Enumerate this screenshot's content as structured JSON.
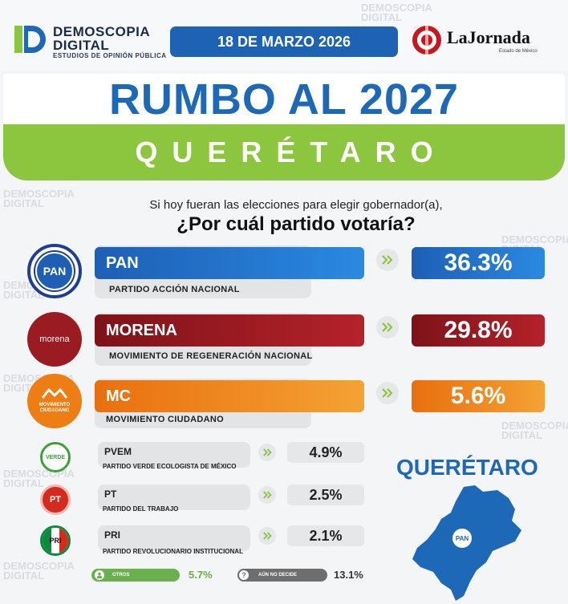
{
  "header": {
    "brand_line1": "DEMOSCOPIA",
    "brand_line2": "DIGITAL",
    "brand_tagline": "ESTUDIOS DE OPINIÓN PÚBLICA",
    "date": "18 DE MARZO 2026",
    "partner_name": "LaJornada",
    "partner_sub": "Estado de México"
  },
  "title": "RUMBO AL 2027",
  "state_banner": "QUERÉTARO",
  "question_line1": "Si hoy fueran las elecciones para elegir gobernador(a),",
  "question_line2": "¿Por cuál partido votaría?",
  "watermark_line1": "DEMOSCOPIA",
  "watermark_line2": "DIGITAL",
  "map_title": "QUERÉTARO",
  "map_badge": "PAN",
  "colors": {
    "pan": "#1d5fb5",
    "morena": "#9a1b22",
    "mc": "#ee7d14",
    "pvem": "#3aa23a",
    "pt": "#d52b1e",
    "pri": "#0b8a3e",
    "otros": "#6ab04c",
    "no_decide": "#6e6e6e",
    "accent_green": "#8cc63f",
    "accent_blue": "#1e68b8"
  },
  "logos": {
    "pan": "PAN",
    "morena": "morena",
    "mc": "MOVIMIENTO CIUDADANO",
    "pvem": "VERDE",
    "pt": "PT",
    "pri": "PRI"
  },
  "chart_data": {
    "type": "bar",
    "title": "¿Por cuál partido votaría?",
    "categories": [
      "PAN",
      "MORENA",
      "MC",
      "PVEM",
      "PT",
      "PRI",
      "OTROS",
      "AÚN NO DECIDE"
    ],
    "values": [
      36.3,
      29.8,
      5.6,
      4.9,
      2.5,
      2.1,
      5.7,
      13.1
    ],
    "labels": [
      "36.3%",
      "29.8%",
      "5.6%",
      "4.9%",
      "2.5%",
      "2.1%",
      "5.7%",
      "13.1%"
    ],
    "full_names": [
      "PARTIDO ACCIÓN NACIONAL",
      "MOVIMIENTO DE REGENERACIÓN NACIONAL",
      "MOVIMIENTO CIUDADANO",
      "PARTIDO VERDE ECOLOGISTA DE MÉXICO",
      "PARTIDO DEL TRABAJO",
      "PARTIDO REVOLUCIONARIO INSTITUCIONAL",
      "",
      ""
    ]
  }
}
